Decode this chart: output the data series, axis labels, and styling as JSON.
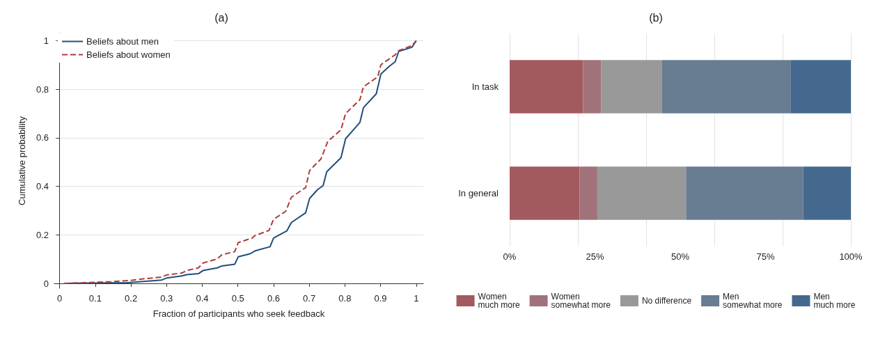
{
  "chart_data": [
    {
      "type": "line",
      "title": "(a)",
      "xlabel": "Fraction of participants who seek feedback",
      "ylabel": "Cumulative probability",
      "xlim": [
        -0.015,
        1.02
      ],
      "ylim": [
        -0.02,
        1.03
      ],
      "xticks": [
        0,
        0.1,
        0.2,
        0.3,
        0.4,
        0.5,
        0.6,
        0.7,
        0.8,
        0.9,
        1
      ],
      "yticks": [
        0,
        0.2,
        0.4,
        0.6,
        0.8,
        1
      ],
      "grid": "y",
      "legend": "top left",
      "marker": "none",
      "series": [
        {
          "name": "Beliefs about men",
          "color": "#1f4e79",
          "line_style": "solid",
          "x": [
            0.012,
            0.19,
            0.286,
            0.3,
            0.343,
            0.356,
            0.389,
            0.402,
            0.442,
            0.455,
            0.491,
            0.501,
            0.534,
            0.548,
            0.59,
            0.6,
            0.637,
            0.65,
            0.69,
            0.701,
            0.723,
            0.739,
            0.749,
            0.789,
            0.802,
            0.842,
            0.852,
            0.888,
            0.901,
            0.925,
            0.941,
            0.951,
            0.988,
            1
          ],
          "values": [
            0,
            0.003,
            0.014,
            0.022,
            0.031,
            0.036,
            0.04,
            0.053,
            0.064,
            0.072,
            0.079,
            0.11,
            0.122,
            0.134,
            0.151,
            0.187,
            0.216,
            0.251,
            0.291,
            0.35,
            0.386,
            0.403,
            0.46,
            0.518,
            0.596,
            0.663,
            0.724,
            0.781,
            0.863,
            0.895,
            0.913,
            0.956,
            0.973,
            1
          ]
        },
        {
          "name": "Beliefs about women",
          "color": "#b03a3a",
          "line_style": "dashed",
          "x": [
            0.012,
            0.144,
            0.197,
            0.243,
            0.286,
            0.3,
            0.343,
            0.356,
            0.389,
            0.402,
            0.442,
            0.455,
            0.491,
            0.501,
            0.54,
            0.548,
            0.587,
            0.6,
            0.634,
            0.65,
            0.69,
            0.701,
            0.733,
            0.752,
            0.789,
            0.802,
            0.842,
            0.852,
            0.892,
            0.901,
            0.941,
            0.951,
            0.988,
            1
          ],
          "values": [
            0,
            0.007,
            0.012,
            0.02,
            0.026,
            0.035,
            0.043,
            0.053,
            0.064,
            0.084,
            0.101,
            0.118,
            0.131,
            0.168,
            0.187,
            0.197,
            0.218,
            0.264,
            0.297,
            0.355,
            0.395,
            0.465,
            0.513,
            0.585,
            0.633,
            0.7,
            0.757,
            0.81,
            0.851,
            0.901,
            0.942,
            0.959,
            0.98,
            1
          ]
        }
      ]
    },
    {
      "type": "bar",
      "title": "(b)",
      "orientation": "horizontal",
      "stacked": true,
      "categories": [
        "In task",
        "In general"
      ],
      "xlim": [
        0,
        100
      ],
      "xticks": [
        {
          "value": 0,
          "label": "0%"
        },
        {
          "value": 25,
          "label": "25%"
        },
        {
          "value": 50,
          "label": "50%"
        },
        {
          "value": 75,
          "label": "75%"
        },
        {
          "value": 100,
          "label": "100%"
        }
      ],
      "grid": "x",
      "legend": "bottom",
      "series": [
        {
          "name": "Women\nmuch more",
          "color": "#a35a5e",
          "values": [
            21.5,
            20.5
          ]
        },
        {
          "name": "Women\nsomewhat more",
          "color": "#a1727a",
          "values": [
            5.3,
            5.2
          ]
        },
        {
          "name": "No difference",
          "color": "#999999",
          "values": [
            17.9,
            26.0
          ]
        },
        {
          "name": "Men\nsomewhat more",
          "color": "#687c92",
          "values": [
            37.6,
            34.3
          ]
        },
        {
          "name": "Men\nmuch more",
          "color": "#45698e",
          "values": [
            17.7,
            14.0
          ]
        }
      ]
    }
  ]
}
